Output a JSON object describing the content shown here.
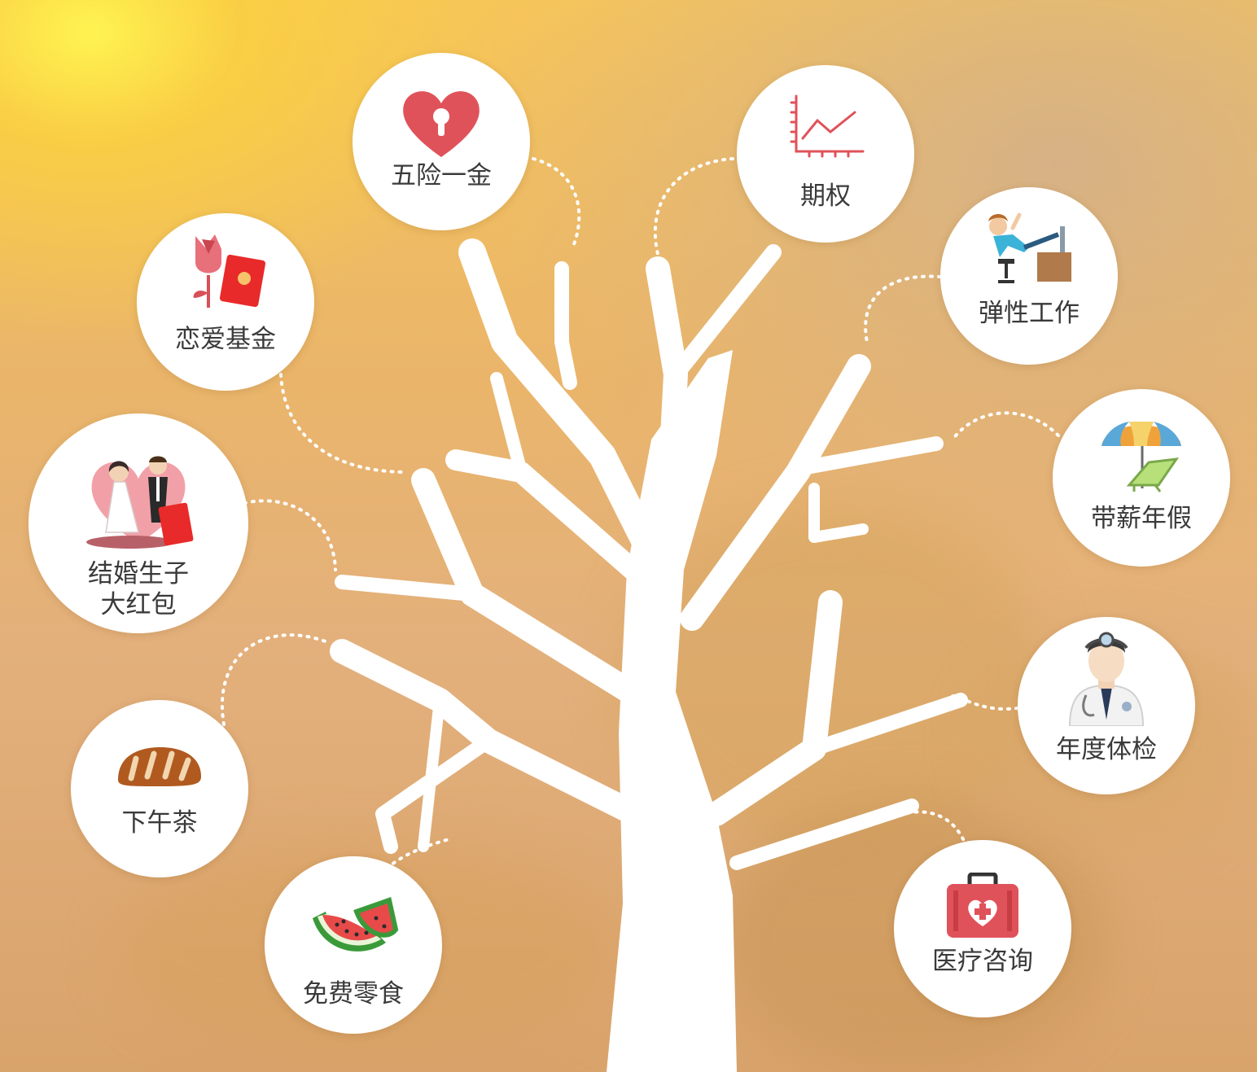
{
  "benefits": [
    {
      "label": "五险一金",
      "icon": "heart-lock-icon"
    },
    {
      "label": "期权",
      "icon": "line-chart-icon"
    },
    {
      "label": "恋爱基金",
      "icon": "rose-red-envelope-icon"
    },
    {
      "label": "弹性工作",
      "icon": "relaxed-worker-icon"
    },
    {
      "label": "结婚生子\n大红包",
      "icon": "wedding-couple-icon"
    },
    {
      "label": "带薪年假",
      "icon": "beach-umbrella-icon"
    },
    {
      "label": "下午茶",
      "icon": "bread-icon"
    },
    {
      "label": "年度体检",
      "icon": "doctor-icon"
    },
    {
      "label": "免费零食",
      "icon": "watermelon-icon"
    },
    {
      "label": "医疗咨询",
      "icon": "medical-kit-icon"
    }
  ],
  "colors": {
    "accent_red": "#e0525a",
    "pink": "#e8707a",
    "tree": "#ffffff",
    "label_text": "#3a3a3a"
  }
}
